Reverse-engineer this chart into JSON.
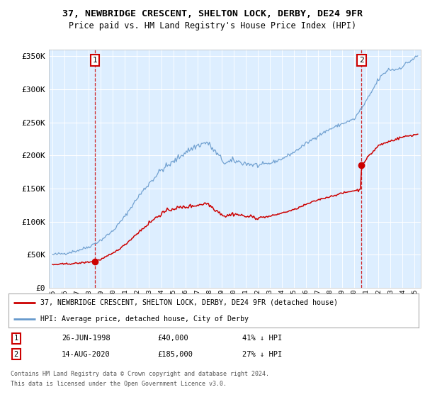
{
  "title1": "37, NEWBRIDGE CRESCENT, SHELTON LOCK, DERBY, DE24 9FR",
  "title2": "Price paid vs. HM Land Registry's House Price Index (HPI)",
  "legend_line1": "37, NEWBRIDGE CRESCENT, SHELTON LOCK, DERBY, DE24 9FR (detached house)",
  "legend_line2": "HPI: Average price, detached house, City of Derby",
  "sale1_date": "26-JUN-1998",
  "sale1_price": 40000,
  "sale1_note": "41% ↓ HPI",
  "sale2_date": "14-AUG-2020",
  "sale2_price": 185000,
  "sale2_note": "27% ↓ HPI",
  "footnote1": "Contains HM Land Registry data © Crown copyright and database right 2024.",
  "footnote2": "This data is licensed under the Open Government Licence v3.0.",
  "hpi_color": "#6699cc",
  "sale_color": "#cc0000",
  "plot_bg": "#ddeeff",
  "grid_color": "#ffffff",
  "ylim": [
    0,
    360000
  ],
  "yticks": [
    0,
    50000,
    100000,
    150000,
    200000,
    250000,
    300000,
    350000
  ],
  "ytick_labels": [
    "£0",
    "£50K",
    "£100K",
    "£150K",
    "£200K",
    "£250K",
    "£300K",
    "£350K"
  ],
  "xlim_start": 1994.7,
  "xlim_end": 2025.5,
  "sale1_x": 1998.5,
  "sale1_y": 40000,
  "sale2_x": 2020.6,
  "sale2_y": 185000,
  "hpi_anchors_x": [
    1995.0,
    1996.0,
    1997.0,
    1998.0,
    1999.0,
    2000.0,
    2001.0,
    2002.0,
    2003.0,
    2004.0,
    2005.0,
    2006.0,
    2007.0,
    2007.8,
    2008.5,
    2009.3,
    2010.0,
    2011.0,
    2012.0,
    2013.0,
    2014.0,
    2015.0,
    2016.0,
    2017.0,
    2018.0,
    2019.0,
    2020.0,
    2021.0,
    2022.0,
    2022.8,
    2023.5,
    2024.0,
    2025.2
  ],
  "hpi_anchors_y": [
    50000,
    52000,
    56000,
    62000,
    72000,
    86000,
    108000,
    135000,
    158000,
    178000,
    190000,
    205000,
    215000,
    220000,
    205000,
    188000,
    192000,
    188000,
    185000,
    188000,
    195000,
    205000,
    218000,
    230000,
    240000,
    248000,
    255000,
    282000,
    315000,
    330000,
    330000,
    335000,
    350000
  ],
  "red_anchors_x": [
    1995.0,
    1996.0,
    1997.0,
    1998.0,
    1998.5,
    1999.0,
    2000.0,
    2001.0,
    2002.0,
    2003.0,
    2004.0,
    2005.0,
    2006.0,
    2007.0,
    2007.8,
    2008.5,
    2009.3,
    2010.0,
    2011.0,
    2012.0,
    2013.0,
    2014.0,
    2015.0,
    2016.0,
    2017.0,
    2018.0,
    2019.0,
    2020.0,
    2020.5,
    2020.6,
    2021.0,
    2022.0,
    2023.0,
    2024.0,
    2025.2
  ],
  "red_anchors_y": [
    35000,
    36000,
    37000,
    39000,
    40000,
    43000,
    52000,
    65000,
    82000,
    98000,
    112000,
    120000,
    122000,
    125000,
    128000,
    118000,
    108000,
    112000,
    108000,
    106000,
    108000,
    113000,
    118000,
    126000,
    133000,
    138000,
    143000,
    147000,
    148000,
    185000,
    195000,
    215000,
    222000,
    228000,
    232000
  ]
}
